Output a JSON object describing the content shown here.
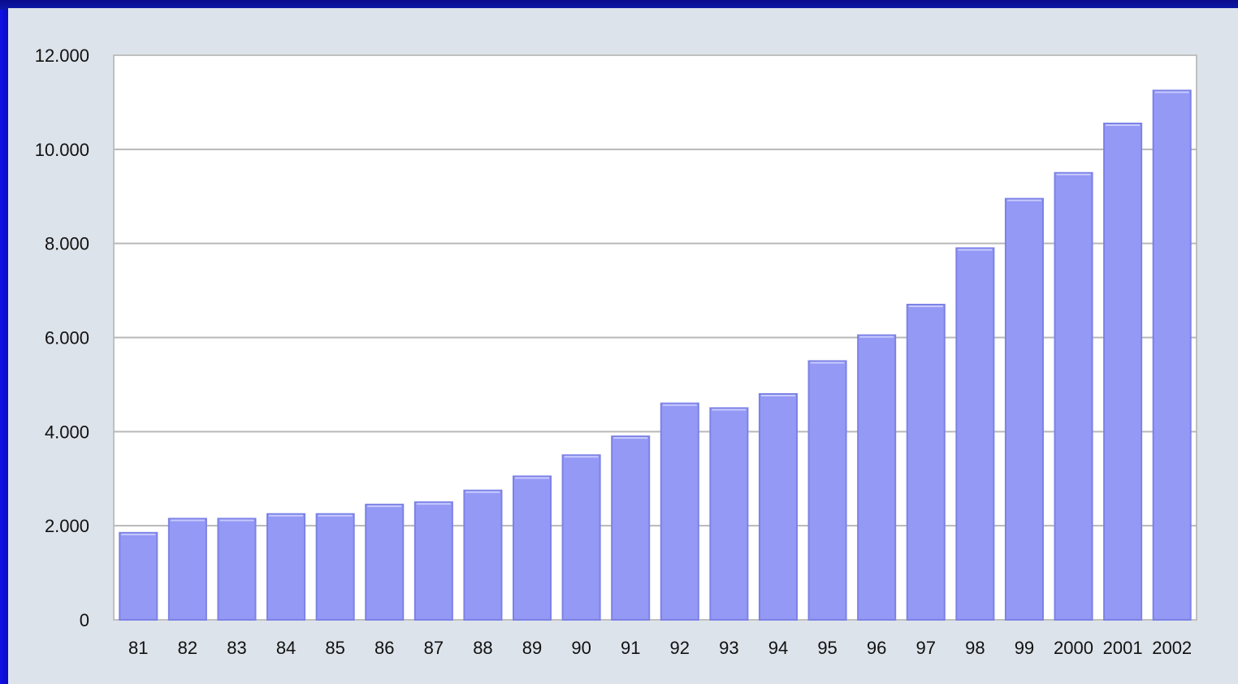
{
  "chart_data": {
    "type": "bar",
    "title": "",
    "xlabel": "",
    "ylabel": "",
    "ylim": [
      0,
      12000
    ],
    "grid": true,
    "legend": "none",
    "y_ticks": [
      0,
      2000,
      4000,
      6000,
      8000,
      10000,
      12000
    ],
    "y_tick_labels": [
      "0",
      "2.000",
      "4.000",
      "6.000",
      "8.000",
      "10.000",
      "12.000"
    ],
    "categories": [
      "81",
      "82",
      "83",
      "84",
      "85",
      "86",
      "87",
      "88",
      "89",
      "90",
      "91",
      "92",
      "93",
      "94",
      "95",
      "96",
      "97",
      "98",
      "99",
      "2000",
      "2001",
      "2002"
    ],
    "values": [
      1850,
      2150,
      2150,
      2250,
      2250,
      2450,
      2500,
      2750,
      3050,
      3500,
      3900,
      4600,
      4500,
      4800,
      5500,
      6050,
      6700,
      7900,
      8950,
      9500,
      10550,
      11250
    ],
    "colors": {
      "bar": "#9499f5",
      "bar_shade": "#7c82e6",
      "plot_background": "#ffffff",
      "gridline": "#b8b8b8",
      "panel": "#dde3ea",
      "frame": "#0a0a9a"
    }
  }
}
